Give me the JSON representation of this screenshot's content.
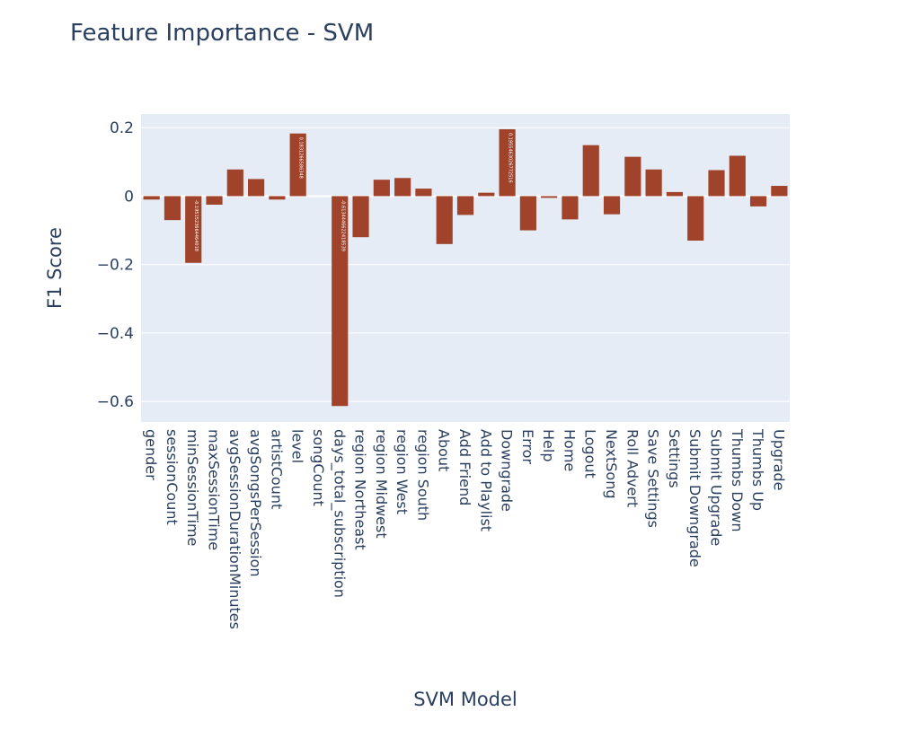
{
  "chart_data": {
    "type": "bar",
    "title": "Feature Importance - SVM",
    "xlabel": "SVM Model",
    "ylabel": "F1 Score",
    "ylim": [
      -0.66,
      0.24
    ],
    "yticks": [
      0.2,
      0,
      -0.2,
      -0.4,
      -0.6
    ],
    "ytick_labels": [
      "0.2",
      "0",
      "−0.2",
      "−0.4",
      "−0.6"
    ],
    "bar_color": "#a0432a",
    "plot_bg": "#e5ecf6",
    "grid": true,
    "categories": [
      "gender",
      "sessionCount",
      "minSessionTime",
      "maxSessionTime",
      "avgSessionDurationMinutes",
      "avgSongsPerSession",
      "artistCount",
      "level",
      "songCount",
      "days_total_subscription",
      "region Northeast",
      "region Midwest",
      "region West",
      "region South",
      "About",
      "Add Friend",
      "Add to Playlist",
      "Downgrade",
      "Error",
      "Help",
      "Home",
      "Logout",
      "NextSong",
      "Roll Advert",
      "Save Settings",
      "Settings",
      "Submit Downgrade",
      "Submit Upgrade",
      "Thumbs Down",
      "Thumbs Up",
      "Upgrade"
    ],
    "values": [
      -0.01,
      -0.07,
      -0.195,
      -0.025,
      0.078,
      0.05,
      -0.01,
      0.1831,
      0.0,
      -0.6134,
      -0.12,
      0.048,
      0.053,
      0.022,
      -0.14,
      -0.055,
      0.01,
      0.1955,
      -0.1,
      -0.005,
      -0.068,
      0.149,
      -0.053,
      0.115,
      0.078,
      0.012,
      -0.13,
      0.076,
      0.118,
      -0.03,
      0.03
    ],
    "data_labels": [
      "",
      "",
      "-0.1951523664464018",
      "",
      "",
      "",
      "",
      "0.1831266586348",
      "",
      "-0.6134446622418539",
      "",
      "",
      "",
      "",
      "",
      "",
      "",
      "0.1955463026772516",
      "",
      "",
      "",
      "",
      "",
      "",
      "",
      "",
      "",
      "",
      "",
      "",
      ""
    ]
  }
}
